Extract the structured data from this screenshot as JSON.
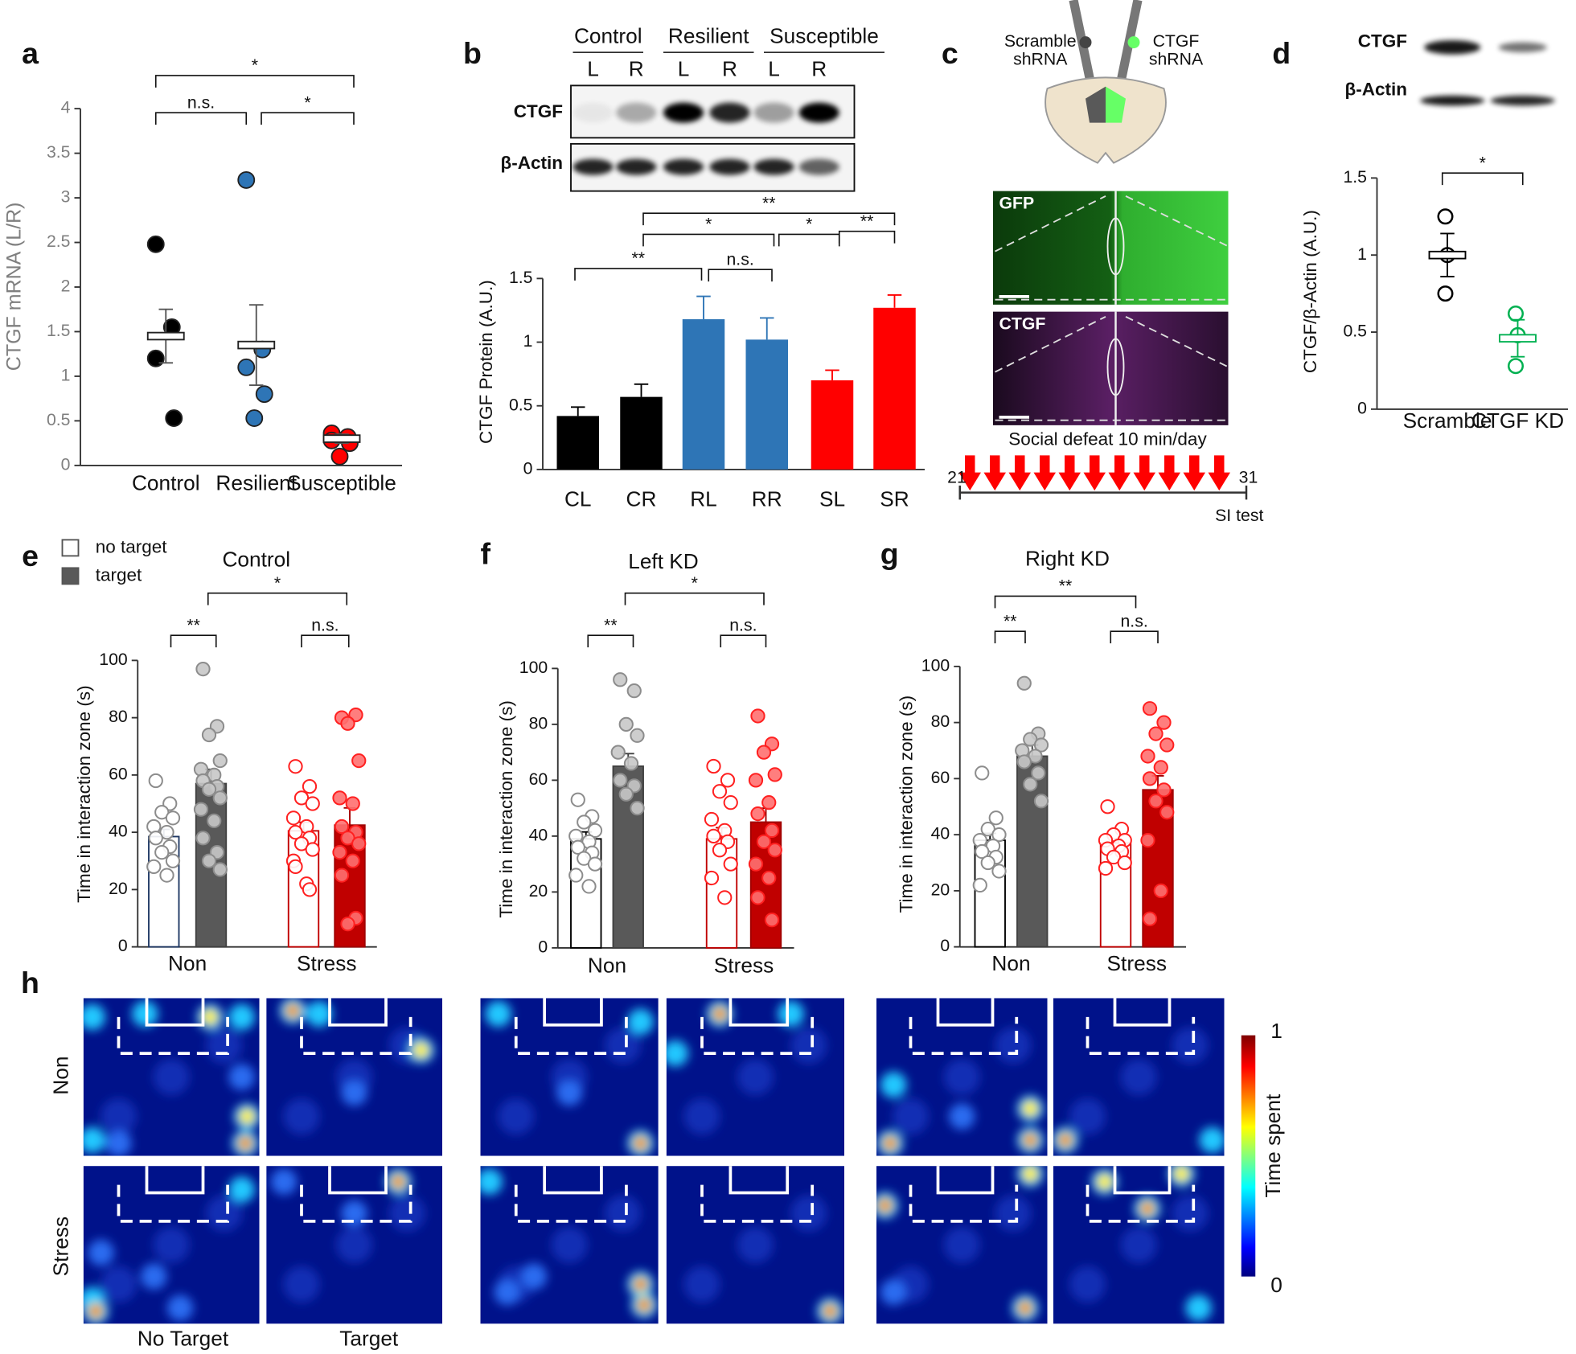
{
  "panel_labels": [
    "a",
    "b",
    "c",
    "d",
    "e",
    "f",
    "g",
    "h"
  ],
  "chart_data": [
    {
      "type": "dot",
      "y_label": "CTGF  mRNA (L/R)",
      "categories": [
        "Control",
        "Resilient",
        "Susceptible"
      ],
      "colors": [
        "#000000",
        "#2e75b6",
        "#ff0000"
      ],
      "markers": "filled",
      "points": [
        [
          2.48,
          1.55,
          1.2,
          0.53
        ],
        [
          3.2,
          1.3,
          1.1,
          0.8,
          0.53
        ],
        [
          0.36,
          0.32,
          0.28,
          0.25,
          0.1
        ]
      ],
      "means": [
        1.45,
        1.35,
        0.3
      ],
      "errors": [
        0.3,
        0.45,
        0.05
      ],
      "ylim": [
        0,
        4
      ],
      "yticks": [
        0,
        0.5,
        1,
        1.5,
        2,
        2.5,
        3,
        3.5,
        4
      ],
      "annotations": [
        "*",
        "n.s.",
        "*"
      ]
    },
    {
      "type": "bar",
      "y_label": "CTGF  Protein  (A.U.)",
      "categories": [
        "CL",
        "CR",
        "RL",
        "RR",
        "SL",
        "SR"
      ],
      "values": [
        0.42,
        0.57,
        1.18,
        1.02,
        0.7,
        1.27
      ],
      "errors": [
        0.07,
        0.1,
        0.18,
        0.17,
        0.08,
        0.1
      ],
      "colors": [
        "#000000",
        "#000000",
        "#2e75b6",
        "#2e75b6",
        "#ff0000",
        "#ff0000"
      ],
      "ylim": [
        0,
        1.5
      ],
      "yticks": [
        0,
        0.5,
        1,
        1.5
      ],
      "annotations": [
        "**",
        "n.s.",
        "*",
        "*",
        "**",
        "**"
      ]
    },
    {
      "type": "dot",
      "y_label": "CTGF/β-Actin (A.U.)",
      "categories": [
        "Scramble",
        "CTGF  KD"
      ],
      "colors": [
        "#000000",
        "#00b050"
      ],
      "markers": "open",
      "points": [
        [
          1.25,
          1.0,
          0.75
        ],
        [
          0.62,
          0.48,
          0.28
        ]
      ],
      "means": [
        1.0,
        0.46
      ],
      "errors": [
        0.14,
        0.12
      ],
      "ylim": [
        0,
        1.5
      ],
      "yticks": [
        0,
        0.5,
        1,
        1.5
      ],
      "annotations": [
        "*"
      ]
    },
    {
      "type": "grouped_bar",
      "title": "Control",
      "y_label": "Time in interaction zone (s)",
      "categories": [
        "Non",
        "Stress"
      ],
      "legend": true,
      "series": [
        {
          "name": "no target",
          "values": [
            38.5,
            40.5
          ],
          "errors": [
            2.5,
            3
          ],
          "fill": [
            "#ffffff",
            "#ffffff"
          ],
          "stroke": [
            "#1f3864",
            "#c00000"
          ],
          "point_fill": [
            "#ffffff",
            "#ffffff"
          ],
          "point_stroke": [
            "#8c8c8c",
            "#ff2020"
          ],
          "points": [
            [
              58,
              50,
              47,
              45,
              42,
              40,
              38,
              35,
              33,
              30,
              28,
              25
            ],
            [
              63,
              56,
              52,
              50,
              45,
              42,
              40,
              38,
              36,
              34,
              30,
              22,
              28,
              20
            ]
          ]
        },
        {
          "name": "target",
          "values": [
            57,
            42.5
          ],
          "errors": [
            5,
            6
          ],
          "fill": [
            "#595959",
            "#c00000"
          ],
          "stroke": [
            "#404040",
            "#a00000"
          ],
          "point_fill": [
            "#c8c8c8",
            "#ff7070"
          ],
          "point_stroke": [
            "#8c8c8c",
            "#ff2020"
          ],
          "points": [
            [
              97,
              77,
              74,
              65,
              62,
              60,
              58,
              56,
              55,
              52,
              48,
              44,
              38,
              33,
              30,
              27
            ],
            [
              80,
              81,
              78,
              65,
              52,
              50,
              42,
              40,
              38,
              36,
              33,
              30,
              25,
              10,
              8
            ]
          ]
        }
      ],
      "ylim": [
        0,
        100
      ],
      "yticks": [
        0,
        20,
        40,
        60,
        80,
        100
      ],
      "annotations": [
        "**",
        "n.s.",
        "*"
      ]
    },
    {
      "type": "grouped_bar",
      "title": "Left KD",
      "y_label": "Time in interaction zone (s)",
      "categories": [
        "Non",
        "Stress"
      ],
      "legend": false,
      "series": [
        {
          "values": [
            39,
            39
          ],
          "errors": [
            2.5,
            4
          ],
          "fill": [
            "#ffffff",
            "#ffffff"
          ],
          "stroke": [
            "#000000",
            "#c00000"
          ],
          "point_fill": [
            "#ffffff",
            "#ffffff"
          ],
          "point_stroke": [
            "#8c8c8c",
            "#ff2020"
          ],
          "points": [
            [
              53,
              47,
              45,
              42,
              40,
              38,
              36,
              34,
              32,
              30,
              26,
              22
            ],
            [
              65,
              60,
              56,
              52,
              46,
              42,
              40,
              38,
              35,
              30,
              25,
              18
            ]
          ]
        },
        {
          "values": [
            65,
            45
          ],
          "errors": [
            4.5,
            5
          ],
          "fill": [
            "#595959",
            "#c00000"
          ],
          "stroke": [
            "#404040",
            "#a00000"
          ],
          "point_fill": [
            "#c8c8c8",
            "#ff7070"
          ],
          "point_stroke": [
            "#8c8c8c",
            "#ff2020"
          ],
          "points": [
            [
              96,
              92,
              80,
              76,
              70,
              66,
              60,
              58,
              55,
              50
            ],
            [
              83,
              73,
              70,
              62,
              60,
              52,
              48,
              42,
              38,
              35,
              30,
              25,
              18,
              10
            ]
          ]
        }
      ],
      "ylim": [
        0,
        100
      ],
      "yticks": [
        0,
        20,
        40,
        60,
        80,
        100
      ],
      "annotations": [
        "**",
        "n.s.",
        "*"
      ]
    },
    {
      "type": "grouped_bar",
      "title": "Right KD",
      "y_label": "Time in interaction zone (s)",
      "categories": [
        "Non",
        "Stress"
      ],
      "legend": false,
      "series": [
        {
          "values": [
            38,
            37
          ],
          "errors": [
            2.5,
            1.5
          ],
          "fill": [
            "#ffffff",
            "#ffffff"
          ],
          "stroke": [
            "#000000",
            "#c00000"
          ],
          "point_fill": [
            "#ffffff",
            "#ffffff"
          ],
          "point_stroke": [
            "#8c8c8c",
            "#ff2020"
          ],
          "points": [
            [
              62,
              46,
              42,
              40,
              38,
              36,
              34,
              32,
              30,
              27,
              22
            ],
            [
              50,
              42,
              40,
              38,
              38,
              36,
              35,
              34,
              32,
              30,
              28
            ]
          ]
        },
        {
          "values": [
            68,
            56
          ],
          "errors": [
            4,
            5
          ],
          "fill": [
            "#595959",
            "#c00000"
          ],
          "stroke": [
            "#404040",
            "#a00000"
          ],
          "point_fill": [
            "#c8c8c8",
            "#ff7070"
          ],
          "point_stroke": [
            "#8c8c8c",
            "#ff2020"
          ],
          "points": [
            [
              94,
              76,
              74,
              72,
              70,
              68,
              66,
              62,
              58,
              52
            ],
            [
              85,
              80,
              76,
              72,
              68,
              64,
              60,
              56,
              52,
              48,
              38,
              20,
              10
            ]
          ]
        }
      ],
      "ylim": [
        0,
        100
      ],
      "yticks": [
        0,
        20,
        40,
        60,
        80,
        100
      ],
      "annotations": [
        "**",
        "n.s.",
        "**"
      ]
    }
  ],
  "blot_b": {
    "groups": [
      "Control",
      "Resilient",
      "Susceptible"
    ],
    "lanes": [
      "L",
      "R",
      "L",
      "R",
      "L",
      "R"
    ],
    "rows": [
      "CTGF",
      "β-Actin"
    ]
  },
  "diagram_c": {
    "left_label": [
      "Scramble",
      "shRNA"
    ],
    "right_label": [
      "CTGF",
      "shRNA"
    ],
    "images": [
      "GFP",
      "CTGF"
    ],
    "protocol": "Social defeat 10 min/day",
    "start": "21",
    "end": "31",
    "test": "SI test"
  },
  "blot_d": {
    "rows": [
      "CTGF",
      "β-Actin"
    ]
  },
  "heatmaps": {
    "rows": [
      "Non",
      "Stress"
    ],
    "columns": [
      "No Target",
      "Target"
    ],
    "colorbar_label": "Time spent",
    "colorbar_ticks": [
      "1",
      "0"
    ]
  }
}
